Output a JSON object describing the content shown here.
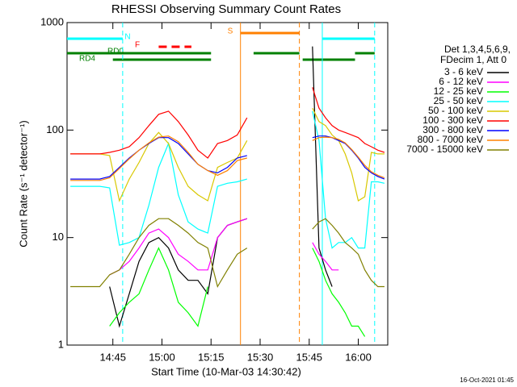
{
  "chart_data": {
    "type": "line",
    "title": "RHESSI Observing Summary Count Rates",
    "xlabel": "Start Time (10-Mar-03 14:30:42)",
    "ylabel": "Count Rate (s⁻¹ detector⁻¹)",
    "footer": "16-Oct-2021 01:45",
    "legend_header": [
      "Det 1,3,4,5,6,9,",
      "FDecim 1, Att 0"
    ],
    "log_y": true,
    "xlim": [
      "14:31",
      "16:09"
    ],
    "xticks": [
      "14:45",
      "15:00",
      "15:15",
      "15:30",
      "15:45",
      "16:00"
    ],
    "ylim": [
      1,
      1000
    ],
    "yticks": [
      1,
      10,
      100,
      1000
    ],
    "x": [
      "14:32",
      "14:35",
      "14:38",
      "14:41",
      "14:44",
      "14:47",
      "14:50",
      "14:53",
      "14:56",
      "14:59",
      "15:02",
      "15:05",
      "15:08",
      "15:11",
      "15:14",
      "15:17",
      "15:20",
      "15:23",
      "15:26",
      "15:35",
      "15:46",
      "15:48",
      "15:50",
      "15:52",
      "15:54",
      "15:56",
      "15:58",
      "16:00",
      "16:02",
      "16:04",
      "16:06",
      "16:08"
    ],
    "series": [
      {
        "name": "3 - 6 keV",
        "color": "#000000",
        "values": [
          null,
          null,
          null,
          null,
          3.5,
          1.5,
          3,
          6,
          9,
          10,
          8,
          5,
          4,
          4,
          3,
          10,
          13,
          14,
          15,
          null,
          600,
          8,
          5,
          3.5,
          null,
          null,
          null,
          null,
          null,
          null,
          null,
          null
        ]
      },
      {
        "name": "6 - 12 keV",
        "color": "#ff00ff",
        "values": [
          null,
          null,
          null,
          null,
          4.5,
          5,
          6,
          8,
          11,
          12,
          10,
          7,
          6,
          5,
          5,
          10,
          13,
          14,
          15,
          null,
          9,
          7,
          6,
          5,
          5,
          null,
          null,
          null,
          null,
          null,
          null,
          null
        ]
      },
      {
        "name": "12 - 25 keV",
        "color": "#00ff00",
        "values": [
          null,
          null,
          null,
          null,
          1.5,
          2,
          2.5,
          3,
          5,
          8,
          5,
          2.5,
          2,
          1.5,
          3.5,
          null,
          null,
          null,
          null,
          null,
          8,
          6,
          4,
          3,
          2.5,
          2,
          1.5,
          1.5,
          1.2,
          null,
          null,
          null
        ]
      },
      {
        "name": "25 - 50 keV",
        "color": "#00ffff",
        "values": [
          30,
          30,
          30,
          30,
          29,
          8.5,
          9,
          10,
          20,
          45,
          75,
          25,
          14,
          12,
          11,
          30,
          32,
          33,
          35,
          null,
          150,
          80,
          15,
          8,
          9,
          9,
          10,
          8,
          8,
          33,
          33,
          32
        ]
      },
      {
        "name": "50 - 100 keV",
        "color": "#d8c800",
        "values": [
          60,
          60,
          60,
          60,
          58,
          22,
          35,
          50,
          75,
          95,
          75,
          45,
          30,
          25,
          22,
          45,
          50,
          55,
          80,
          null,
          160,
          120,
          110,
          90,
          80,
          60,
          40,
          22,
          24,
          62,
          60,
          60
        ]
      },
      {
        "name": "100 - 300 keV",
        "color": "#ff0000",
        "values": [
          60,
          60,
          60,
          60,
          62,
          65,
          70,
          85,
          110,
          140,
          150,
          120,
          90,
          65,
          55,
          75,
          80,
          90,
          130,
          null,
          250,
          160,
          130,
          110,
          100,
          95,
          90,
          85,
          75,
          70,
          65,
          62
        ]
      },
      {
        "name": "300 - 800 keV",
        "color": "#0000ff",
        "values": [
          35,
          35,
          35,
          35,
          37,
          45,
          55,
          65,
          75,
          85,
          85,
          75,
          60,
          48,
          42,
          40,
          45,
          55,
          58,
          null,
          85,
          88,
          88,
          85,
          80,
          75,
          65,
          55,
          45,
          40,
          37,
          35
        ]
      },
      {
        "name": "800 - 7000 keV",
        "color": "#ff8000",
        "values": [
          34,
          34,
          34,
          34,
          36,
          44,
          54,
          65,
          76,
          86,
          88,
          78,
          62,
          48,
          42,
          38,
          42,
          52,
          55,
          null,
          80,
          85,
          86,
          85,
          82,
          76,
          66,
          56,
          47,
          41,
          38,
          36
        ]
      },
      {
        "name": "7000 - 15000 keV",
        "color": "#808000",
        "values": [
          3.5,
          3.5,
          3.5,
          3.5,
          4.5,
          5,
          7,
          10,
          13,
          15,
          15,
          13,
          11,
          9,
          8,
          3.5,
          5,
          7,
          8,
          null,
          12,
          14,
          15,
          13,
          11,
          9,
          8,
          7,
          5,
          4,
          3.5,
          3.5
        ]
      }
    ],
    "flags": [
      {
        "name": "N",
        "color": "#00ffff",
        "dash": false,
        "segments": [
          [
            "14:31",
            "14:48"
          ],
          [
            "15:49",
            "16:05"
          ]
        ]
      },
      {
        "name": "F",
        "color": "#ff0000",
        "dash": true,
        "segments": [
          [
            "14:59",
            "15:09"
          ]
        ]
      },
      {
        "name": "S",
        "color": "#ff8000",
        "dash": false,
        "segments": [
          [
            "15:24",
            "15:42"
          ]
        ]
      },
      {
        "name": "RD0",
        "color": "#008000",
        "dash": false,
        "segments": [
          [
            "14:31",
            "15:15"
          ],
          [
            "15:28",
            "15:42"
          ],
          [
            "15:59",
            "16:05"
          ]
        ]
      },
      {
        "name": "RD4",
        "color": "#008000",
        "dash": false,
        "segments": [
          [
            "14:45",
            "15:15"
          ],
          [
            "15:43",
            "15:59"
          ]
        ]
      }
    ],
    "vlines": [
      {
        "x": "14:48",
        "color": "#00ffff",
        "dash": true
      },
      {
        "x": "15:24",
        "color": "#ff8000",
        "dash": false
      },
      {
        "x": "15:42",
        "color": "#ff8000",
        "dash": true
      },
      {
        "x": "15:49",
        "color": "#00ffff",
        "dash": false
      },
      {
        "x": "16:05",
        "color": "#00ffff",
        "dash": true
      }
    ]
  }
}
